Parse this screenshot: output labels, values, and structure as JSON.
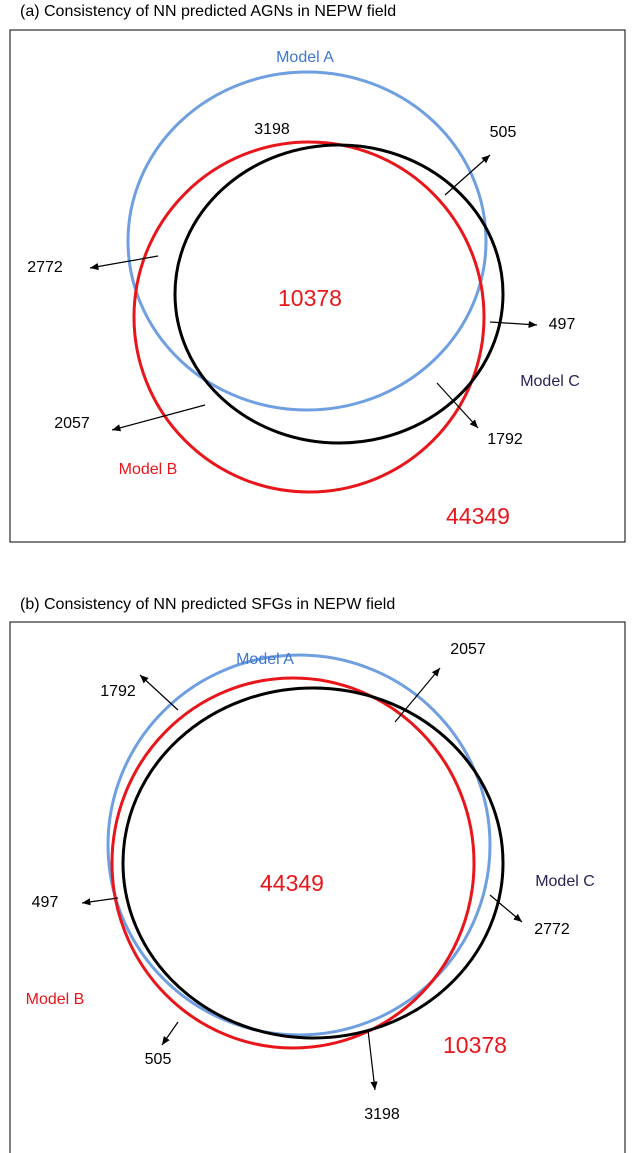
{
  "panels": [
    {
      "title": "(a) Consistency of NN predicted AGNs in NEPW field",
      "model_a": "Model A",
      "model_b": "Model B",
      "model_c": "Model C",
      "counts": [
        3198,
        505,
        2772,
        10378,
        497,
        2057,
        1792,
        44349
      ]
    },
    {
      "title": "(b) Consistency of NN predicted SFGs in NEPW field",
      "model_a": "Model A",
      "model_b": "Model B",
      "model_c": "Model C",
      "counts": [
        2057,
        1792,
        44349,
        497,
        2772,
        505,
        10378,
        3198
      ]
    }
  ]
}
